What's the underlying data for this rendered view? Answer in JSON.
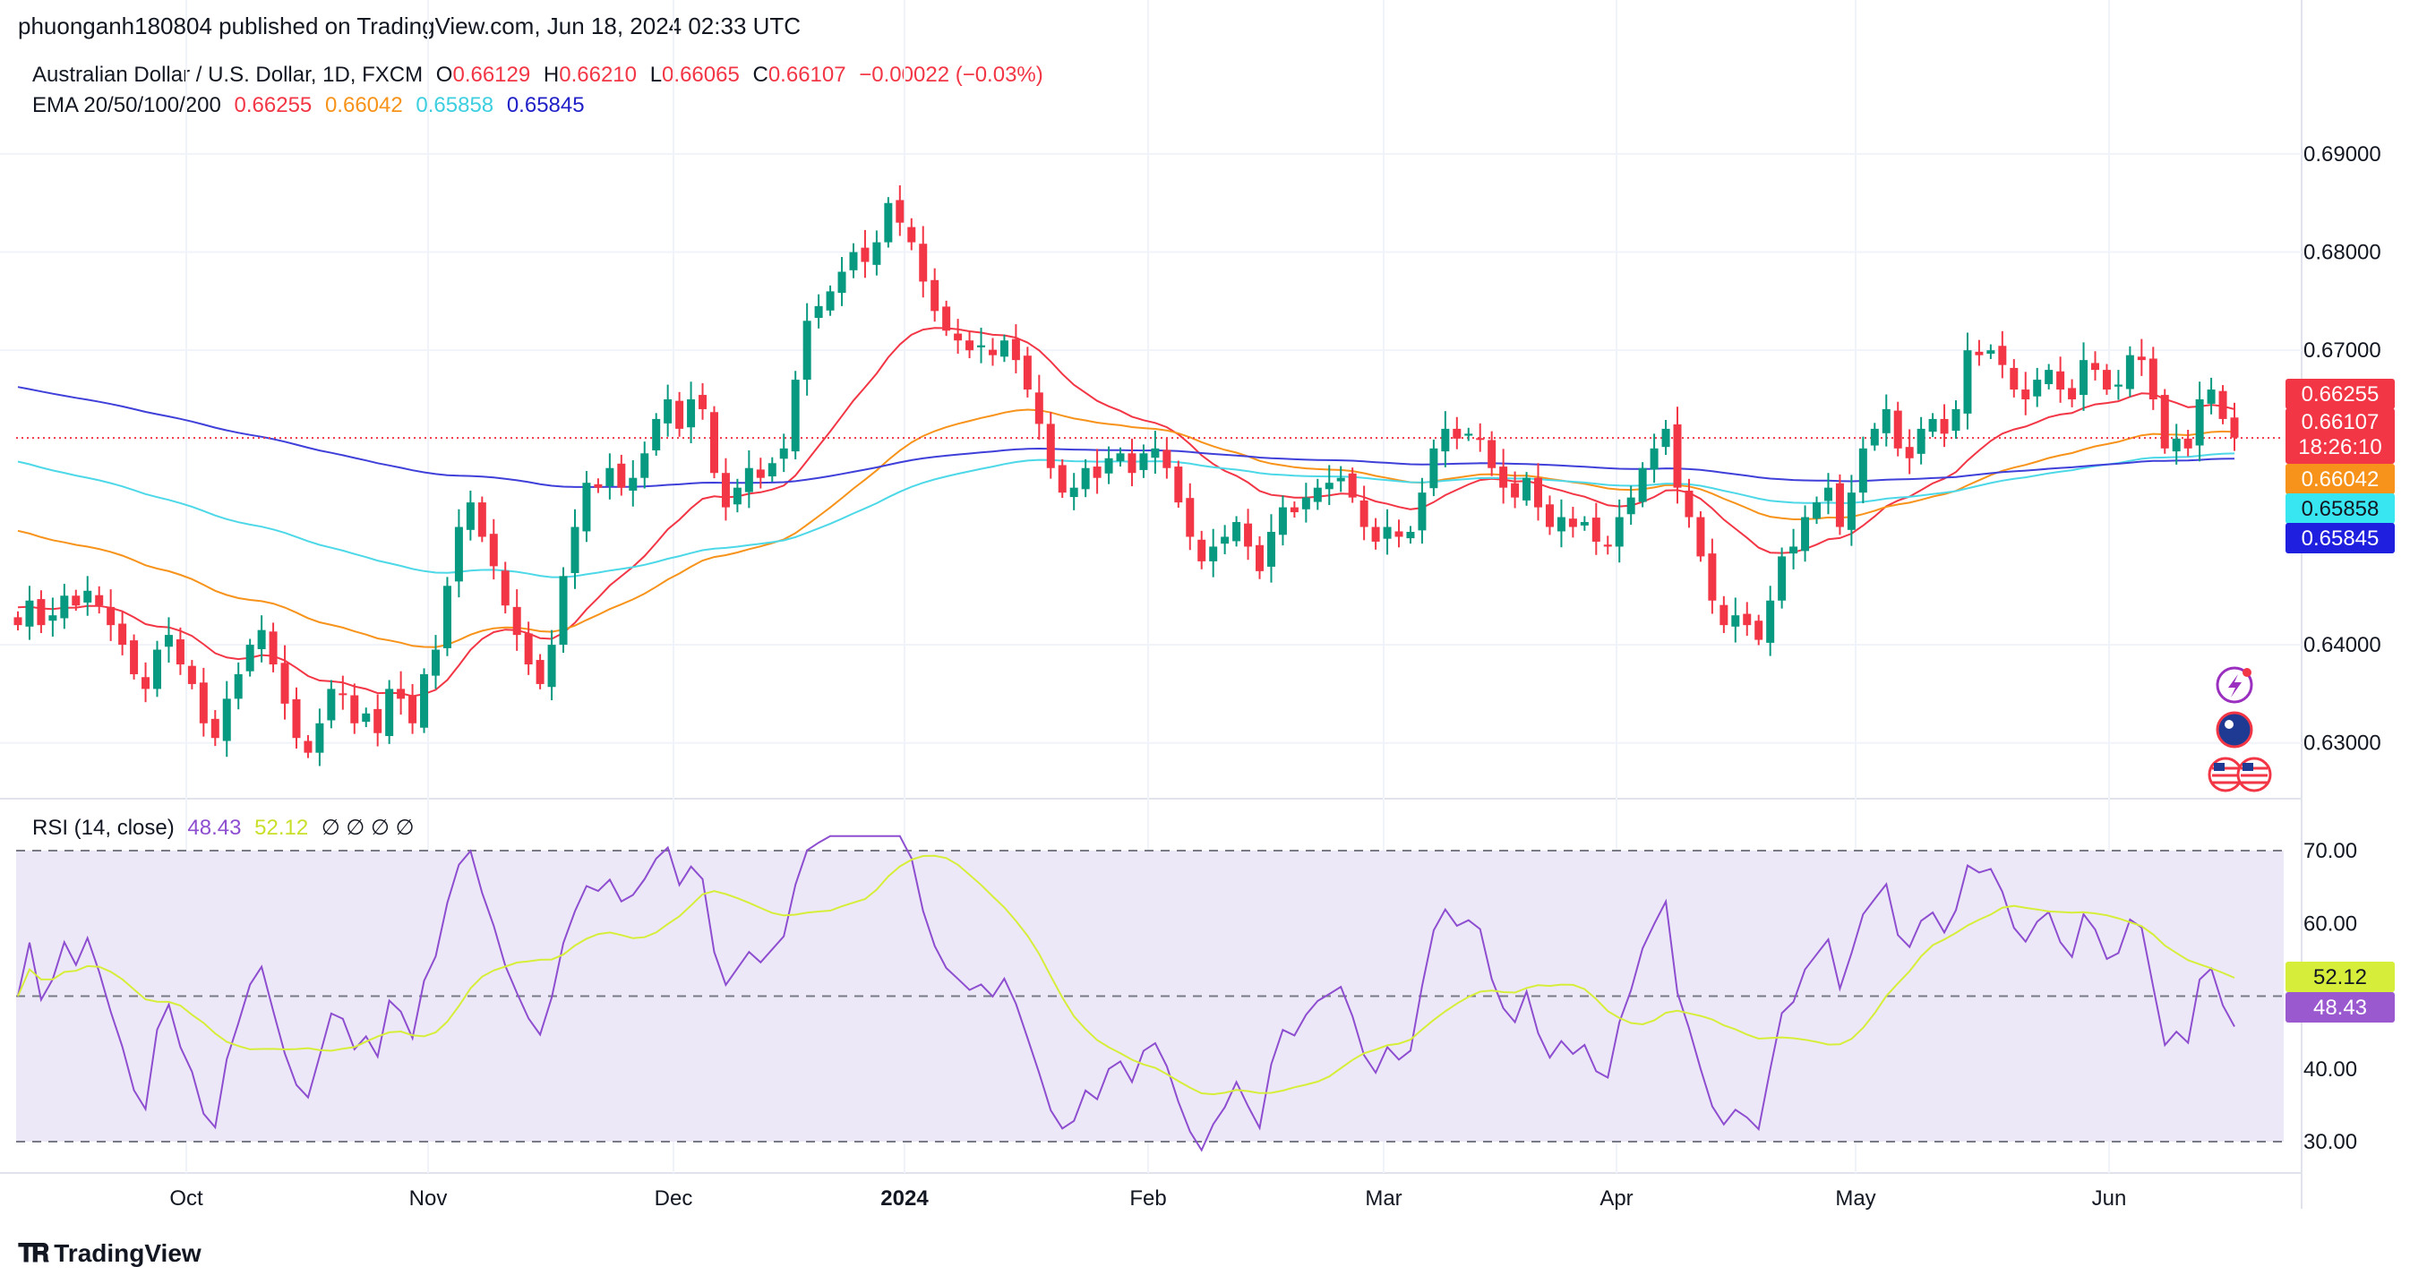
{
  "header": {
    "publisher": "phuonganh180804 published on TradingView.com, Jun 18, 2024 02:33 UTC"
  },
  "legend": {
    "symbol": "Australian Dollar / U.S. Dollar, 1D, FXCM",
    "o_label": "O",
    "o_value": "0.66129",
    "h_label": "H",
    "h_value": "0.66210",
    "l_label": "L",
    "l_value": "0.66065",
    "c_label": "C",
    "c_value": "0.66107",
    "change": "−0.00022 (−0.03%)",
    "ema_label": "EMA 20/50/100/200",
    "ema20": "0.66255",
    "ema50": "0.66042",
    "ema100": "0.65858",
    "ema200": "0.65845"
  },
  "rsi_legend": {
    "label": "RSI (14, close)",
    "rsi_value": "48.43",
    "ma_value": "52.12",
    "placeholders": "∅ ∅ ∅ ∅"
  },
  "badges": {
    "ema20": "0.66255",
    "close": "0.66107",
    "countdown": "18:26:10",
    "ema50": "0.66042",
    "ema100": "0.65858",
    "ema200": "0.65845",
    "rsi_ma": "52.12",
    "rsi": "48.43"
  },
  "footer": {
    "brand": "TradingView"
  },
  "colors": {
    "up": "#089981",
    "down": "#f23645",
    "ema20": "#f23645",
    "ema50": "#f7931a",
    "ema100": "#4dd8e8",
    "ema200": "#3f3fd9",
    "rsi": "#8e4ed0",
    "rsi_ma": "#d6ee3a",
    "rsi_band": "#ede8f8"
  },
  "chart_data": [
    {
      "type": "candlestick",
      "title": "Australian Dollar / U.S. Dollar, 1D, FXCM",
      "ylim": [
        0.6245,
        0.692
      ],
      "y_ticks": [
        "0.63000",
        "0.64000",
        "0.67000",
        "0.68000",
        "0.69000"
      ],
      "x_ticks": [
        "Oct",
        "Nov",
        "Dec",
        "2024",
        "Feb",
        "Mar",
        "Apr",
        "May",
        "Jun"
      ],
      "grid": true,
      "close_path": [
        0.642,
        0.6445,
        0.642,
        0.643,
        0.645,
        0.644,
        0.6455,
        0.644,
        0.642,
        0.64,
        0.637,
        0.6355,
        0.6395,
        0.641,
        0.638,
        0.636,
        0.632,
        0.6305,
        0.6345,
        0.637,
        0.64,
        0.6415,
        0.638,
        0.634,
        0.6305,
        0.629,
        0.632,
        0.6355,
        0.635,
        0.632,
        0.633,
        0.631,
        0.6355,
        0.6345,
        0.632,
        0.637,
        0.6395,
        0.646,
        0.652,
        0.6545,
        0.651,
        0.648,
        0.644,
        0.641,
        0.638,
        0.636,
        0.64,
        0.647,
        0.652,
        0.6565,
        0.656,
        0.658,
        0.656,
        0.657,
        0.6595,
        0.663,
        0.665,
        0.662,
        0.665,
        0.664,
        0.6575,
        0.654,
        0.656,
        0.658,
        0.657,
        0.6585,
        0.66,
        0.667,
        0.673,
        0.6745,
        0.676,
        0.678,
        0.68,
        0.679,
        0.681,
        0.685,
        0.683,
        0.681,
        0.677,
        0.674,
        0.672,
        0.671,
        0.67,
        0.6705,
        0.6695,
        0.671,
        0.669,
        0.666,
        0.6625,
        0.658,
        0.6555,
        0.656,
        0.658,
        0.657,
        0.659,
        0.6595,
        0.6575,
        0.6595,
        0.66,
        0.658,
        0.6545,
        0.651,
        0.6485,
        0.65,
        0.651,
        0.6525,
        0.65,
        0.6475,
        0.6515,
        0.654,
        0.6535,
        0.655,
        0.656,
        0.6565,
        0.657,
        0.655,
        0.652,
        0.6505,
        0.652,
        0.651,
        0.6515,
        0.6555,
        0.66,
        0.662,
        0.661,
        0.6615,
        0.661,
        0.658,
        0.656,
        0.655,
        0.657,
        0.654,
        0.652,
        0.653,
        0.652,
        0.6525,
        0.6505,
        0.65,
        0.653,
        0.655,
        0.658,
        0.66,
        0.662,
        0.656,
        0.653,
        0.649,
        0.6445,
        0.642,
        0.643,
        0.642,
        0.6405,
        0.6445,
        0.649,
        0.65,
        0.653,
        0.6545,
        0.656,
        0.652,
        0.6555,
        0.66,
        0.662,
        0.664,
        0.66,
        0.659,
        0.662,
        0.663,
        0.6615,
        0.664,
        0.67,
        0.6695,
        0.67,
        0.6685,
        0.666,
        0.665,
        0.667,
        0.668,
        0.666,
        0.665,
        0.669,
        0.668,
        0.666,
        0.6665,
        0.6695,
        0.669,
        0.665,
        0.66,
        0.661,
        0.66,
        0.665,
        0.666,
        0.663,
        0.6611
      ],
      "ema": [
        {
          "name": "EMA 20",
          "last": 0.66255
        },
        {
          "name": "EMA 50",
          "last": 0.66042
        },
        {
          "name": "EMA 100",
          "last": 0.65858
        },
        {
          "name": "EMA 200",
          "last": 0.65845
        }
      ]
    },
    {
      "type": "line",
      "title": "RSI (14, close)",
      "ylim": [
        30,
        70
      ],
      "y_ticks": [
        "30.00",
        "40.00",
        "50.00",
        "60.00",
        "70.00"
      ],
      "series": [
        {
          "name": "RSI",
          "last": 48.43
        },
        {
          "name": "RSI-based MA",
          "last": 52.12
        }
      ]
    }
  ]
}
